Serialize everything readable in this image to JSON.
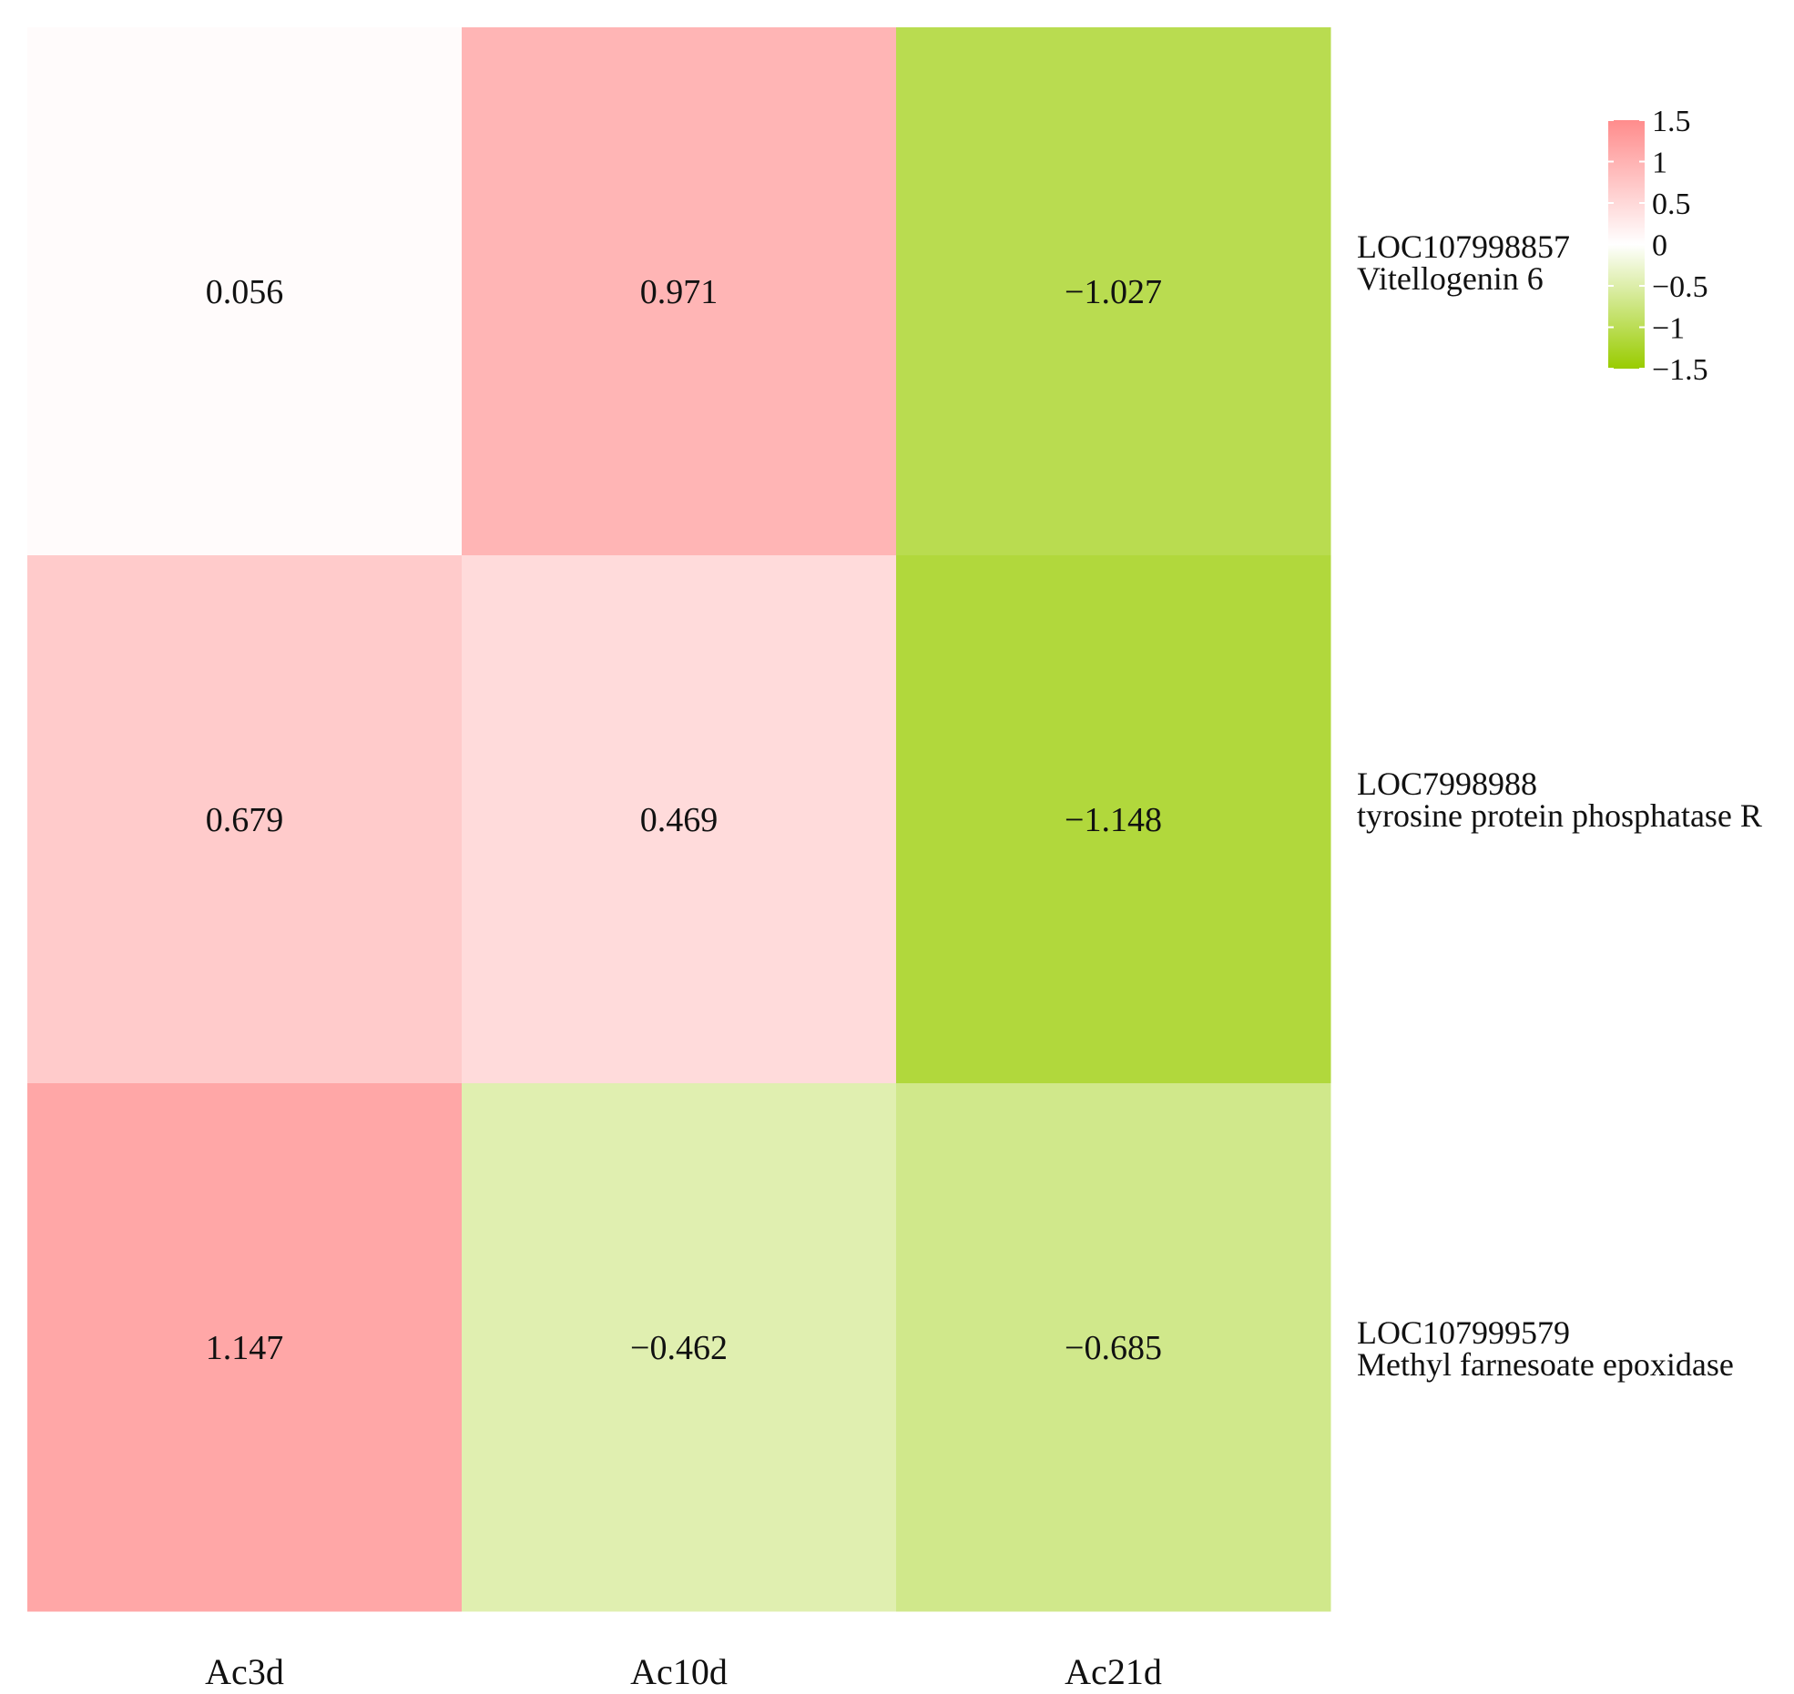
{
  "chart_data": {
    "type": "heatmap",
    "title": "",
    "xlabel": "",
    "ylabel": "",
    "columns": [
      "Ac3d",
      "Ac10d",
      "Ac21d"
    ],
    "rows": [
      {
        "id": "LOC107998857",
        "name": "Vitellogenin 6"
      },
      {
        "id": "LOC7998988",
        "name": "tyrosine protein phosphatase R"
      },
      {
        "id": "LOC107999579",
        "name": "Methyl farnesoate epoxidase"
      }
    ],
    "values": [
      [
        0.056,
        0.971,
        -1.027
      ],
      [
        0.679,
        0.469,
        -1.148
      ],
      [
        1.147,
        -0.462,
        -0.685
      ]
    ],
    "value_labels": [
      [
        "0.056",
        "0.971",
        "−1.027"
      ],
      [
        "0.679",
        "0.469",
        "−1.148"
      ],
      [
        "1.147",
        "−0.462",
        "−0.685"
      ]
    ],
    "color_scale": {
      "min": -1.5,
      "max": 1.5,
      "low_color": "#99cc00",
      "mid_color": "#ffffff",
      "high_color": "#ff8c8c",
      "legend_ticks": [
        1.5,
        1,
        0.5,
        0,
        -0.5,
        -1,
        -1.5
      ],
      "legend_tick_labels": [
        "1.5",
        "1",
        "0.5",
        "0",
        "−0.5",
        "−1",
        "−1.5"
      ],
      "legend_position": "top-right"
    }
  }
}
